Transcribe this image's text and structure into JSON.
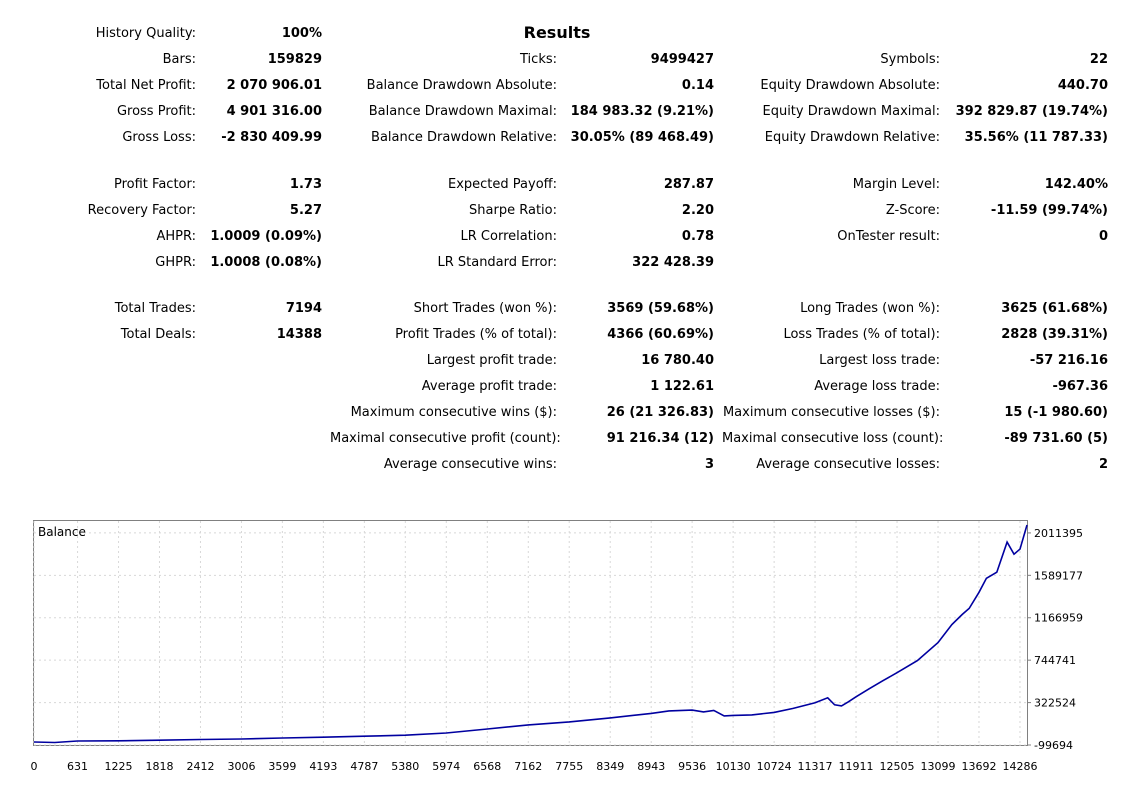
{
  "report": {
    "title": "Results",
    "col1": [
      {
        "label": "History Quality:",
        "value": "100%"
      },
      {
        "label": "Bars:",
        "value": "159829"
      },
      {
        "label": "Total Net Profit:",
        "value": "2 070 906.01"
      },
      {
        "label": "Gross Profit:",
        "value": "4 901 316.00"
      },
      {
        "label": "Gross Loss:",
        "value": "-2 830 409.99"
      },
      {
        "label": "Profit Factor:",
        "value": "1.73"
      },
      {
        "label": "Recovery Factor:",
        "value": "5.27"
      },
      {
        "label": "AHPR:",
        "value": "1.0009 (0.09%)"
      },
      {
        "label": "GHPR:",
        "value": "1.0008 (0.08%)"
      },
      {
        "label": "Total Trades:",
        "value": "7194"
      },
      {
        "label": "Total Deals:",
        "value": "14388"
      }
    ],
    "col2": [
      {
        "label": "Ticks:",
        "value": "9499427"
      },
      {
        "label": "Balance Drawdown Absolute:",
        "value": "0.14"
      },
      {
        "label": "Balance Drawdown Maximal:",
        "value": "184 983.32 (9.21%)"
      },
      {
        "label": "Balance Drawdown Relative:",
        "value": "30.05% (89 468.49)"
      },
      {
        "label": "Expected Payoff:",
        "value": "287.87"
      },
      {
        "label": "Sharpe Ratio:",
        "value": "2.20"
      },
      {
        "label": "LR Correlation:",
        "value": "0.78"
      },
      {
        "label": "LR Standard Error:",
        "value": "322 428.39"
      },
      {
        "label": "Short Trades (won %):",
        "value": "3569 (59.68%)"
      },
      {
        "label": "Profit Trades (% of total):",
        "value": "4366 (60.69%)"
      },
      {
        "label": "Largest profit trade:",
        "value": "16 780.40"
      },
      {
        "label": "Average profit trade:",
        "value": "1 122.61"
      },
      {
        "label": "Maximum consecutive wins ($):",
        "value": "26 (21 326.83)"
      },
      {
        "label": "Maximal consecutive profit (count):",
        "value": "91 216.34 (12)"
      },
      {
        "label": "Average consecutive wins:",
        "value": "3"
      }
    ],
    "col3": [
      {
        "label": "Symbols:",
        "value": "22"
      },
      {
        "label": "Equity Drawdown Absolute:",
        "value": "440.70"
      },
      {
        "label": "Equity Drawdown Maximal:",
        "value": "392 829.87 (19.74%)"
      },
      {
        "label": "Equity Drawdown Relative:",
        "value": "35.56% (11 787.33)"
      },
      {
        "label": "Margin Level:",
        "value": "142.40%"
      },
      {
        "label": "Z-Score:",
        "value": "-11.59 (99.74%)"
      },
      {
        "label": "OnTester result:",
        "value": "0"
      },
      {
        "label": "Long Trades (won %):",
        "value": "3625 (61.68%)"
      },
      {
        "label": "Loss Trades (% of total):",
        "value": "2828 (39.31%)"
      },
      {
        "label": "Largest loss trade:",
        "value": "-57 216.16"
      },
      {
        "label": "Average loss trade:",
        "value": "-967.36"
      },
      {
        "label": "Maximum consecutive losses ($):",
        "value": "15 (-1 980.60)"
      },
      {
        "label": "Maximal consecutive loss (count):",
        "value": "-89 731.60 (5)"
      },
      {
        "label": "Average consecutive losses:",
        "value": "2"
      }
    ]
  },
  "chart_data": {
    "type": "line",
    "title": "Balance",
    "line_color": "#0000a0",
    "grid": true,
    "x_ticks": [
      "0",
      "631",
      "1225",
      "1818",
      "2412",
      "3006",
      "3599",
      "4193",
      "4787",
      "5380",
      "5974",
      "6568",
      "7162",
      "7755",
      "8349",
      "8943",
      "9536",
      "10130",
      "10724",
      "11317",
      "11911",
      "12505",
      "13099",
      "13692",
      "14286"
    ],
    "y_ticks": [
      "2011395",
      "1589177",
      "1166959",
      "744741",
      "322524",
      "-99694"
    ],
    "ylim": [
      -99694,
      2130000
    ],
    "xlim": [
      0,
      14388
    ],
    "series": [
      {
        "x": [
          0,
          300,
          631,
          1225,
          1818,
          2412,
          3006,
          3599,
          4193,
          4787,
          5380,
          5974,
          6568,
          7162,
          7755,
          8349,
          8943,
          9200,
          9536,
          9700,
          9850,
          10000,
          10130,
          10400,
          10724,
          11000,
          11317,
          11500,
          11600,
          11700,
          11800,
          11911,
          12100,
          12300,
          12505,
          12800,
          13099,
          13300,
          13450,
          13550,
          13692,
          13800,
          13950,
          14100,
          14200,
          14286,
          14388
        ],
        "y": [
          -70000,
          -75000,
          -60000,
          -58000,
          -52000,
          -45000,
          -40000,
          -30000,
          -22000,
          -12000,
          -2000,
          20000,
          60000,
          100000,
          130000,
          170000,
          215000,
          240000,
          248000,
          230000,
          245000,
          190000,
          195000,
          200000,
          225000,
          265000,
          320000,
          370000,
          300000,
          290000,
          330000,
          380000,
          460000,
          540000,
          620000,
          740000,
          920000,
          1100000,
          1200000,
          1260000,
          1420000,
          1560000,
          1620000,
          1920000,
          1800000,
          1850000,
          2090000
        ]
      }
    ]
  }
}
